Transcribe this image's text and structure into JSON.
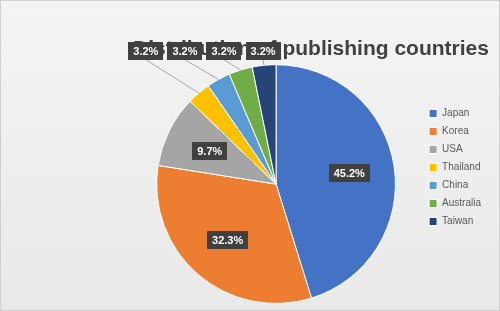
{
  "chart_data": {
    "type": "pie",
    "title": "Distribution of publishing countries",
    "categories": [
      "Japan",
      "Korea",
      "USA",
      "Thailand",
      "China",
      "Australia",
      "Taiwan"
    ],
    "values": [
      45.2,
      32.3,
      9.7,
      3.2,
      3.2,
      3.2,
      3.2
    ],
    "value_labels": [
      "45.2%",
      "32.3%",
      "9.7%",
      "3.2%",
      "3.2%",
      "3.2%",
      "3.2%"
    ],
    "colors": [
      "#4472c4",
      "#ed7d31",
      "#a5a5a5",
      "#ffc000",
      "#5b9bd5",
      "#70ad47",
      "#264478"
    ],
    "data_labels": true,
    "legend": "right"
  }
}
